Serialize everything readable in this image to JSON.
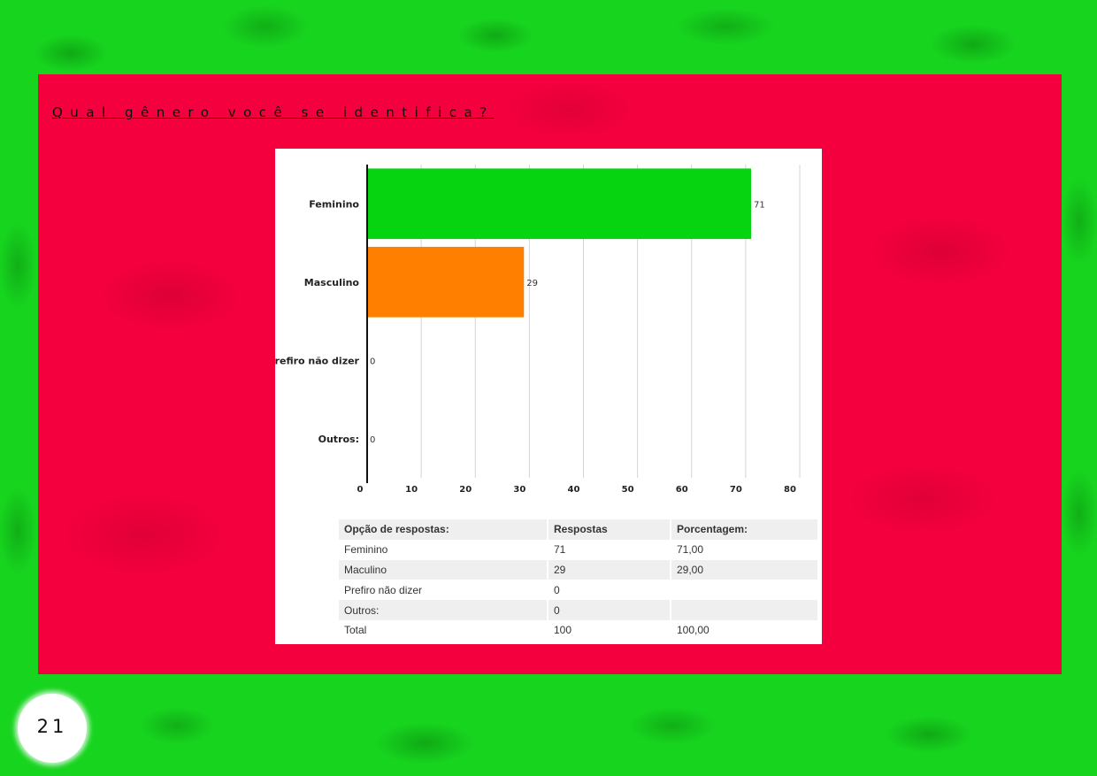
{
  "page": {
    "title": "Qual gênero você se identifica?",
    "page_number": "21",
    "colors": {
      "background": "#17d41f",
      "panel": "#f5003f",
      "card": "#ffffff"
    }
  },
  "chart_data": {
    "type": "bar",
    "orientation": "horizontal",
    "categories": [
      "Feminino",
      "Masculino",
      "Prefiro não dizer",
      "Outros:"
    ],
    "values": [
      71,
      29,
      0,
      0
    ],
    "value_labels": [
      "71",
      "29",
      "0",
      "0"
    ],
    "bar_colors": [
      "#07d411",
      "#ff7f00",
      "#07d411",
      "#07d411"
    ],
    "xlim": [
      0,
      80
    ],
    "x_ticks": [
      0,
      10,
      20,
      30,
      40,
      50,
      60,
      70,
      80
    ],
    "grid": true
  },
  "table": {
    "headers": [
      "Opção de respostas:",
      "Respostas",
      "Porcentagem:"
    ],
    "rows": [
      [
        "Feminino",
        "71",
        "71,00"
      ],
      [
        "Maculino",
        "29",
        "29,00"
      ],
      [
        "Prefiro não dizer",
        "0",
        ""
      ],
      [
        "Outros:",
        "0",
        ""
      ],
      [
        "Total",
        "100",
        "100,00"
      ]
    ]
  }
}
